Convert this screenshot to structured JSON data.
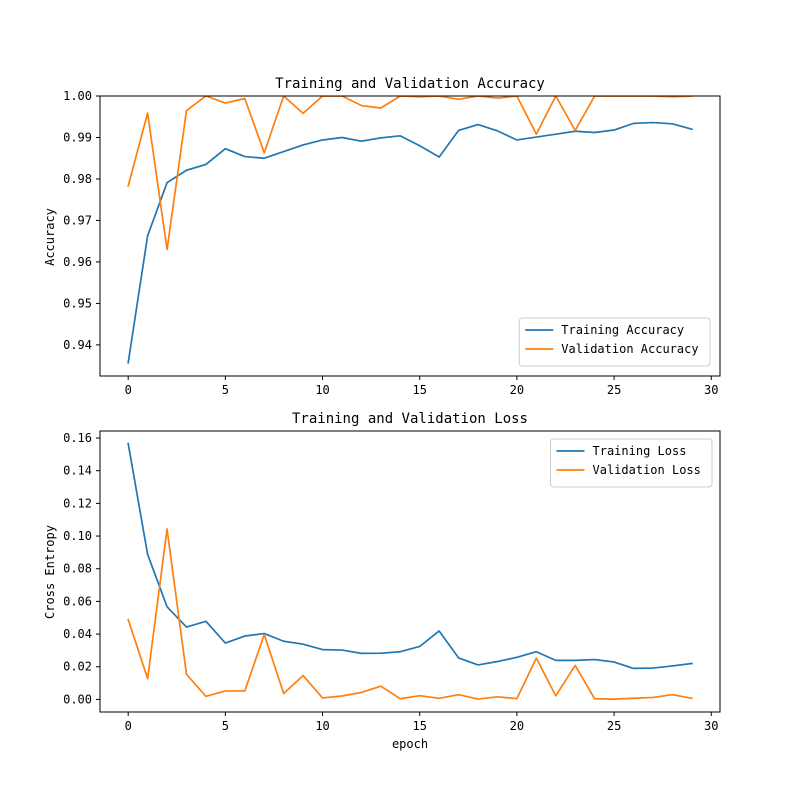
{
  "chart_data": [
    {
      "type": "line",
      "title": "Training and Validation Accuracy",
      "xlabel": "",
      "ylabel": "Accuracy",
      "xlim": [
        -1.45,
        30.45
      ],
      "ylim": [
        0.9325,
        1.0
      ],
      "xticks": [
        0,
        5,
        10,
        15,
        20,
        25,
        30
      ],
      "yticks": [
        0.94,
        0.95,
        0.96,
        0.97,
        0.98,
        0.99,
        1.0
      ],
      "ytick_labels": [
        "0.94",
        "0.95",
        "0.96",
        "0.97",
        "0.98",
        "0.99",
        "1.00"
      ],
      "grid": false,
      "legend_position": "lower-right",
      "x": [
        0,
        1,
        2,
        3,
        4,
        5,
        6,
        7,
        8,
        9,
        10,
        11,
        12,
        13,
        14,
        15,
        16,
        17,
        18,
        19,
        20,
        21,
        22,
        23,
        24,
        25,
        26,
        27,
        28,
        29
      ],
      "series": [
        {
          "name": "Training Accuracy",
          "color": "#1f77b4",
          "values": [
            0.9357,
            0.9663,
            0.9791,
            0.9821,
            0.9835,
            0.9873,
            0.9854,
            0.985,
            0.9866,
            0.9882,
            0.9894,
            0.99,
            0.9891,
            0.9899,
            0.9904,
            0.988,
            0.9853,
            0.9917,
            0.9931,
            0.9916,
            0.9894,
            0.9901,
            0.9908,
            0.9915,
            0.9912,
            0.9918,
            0.9934,
            0.9936,
            0.9933,
            0.992
          ]
        },
        {
          "name": "Validation Accuracy",
          "color": "#ff7f0e",
          "values": [
            0.9783,
            0.9959,
            0.963,
            0.9965,
            1.0,
            0.9983,
            0.9994,
            0.9863,
            1.0,
            0.9958,
            1.0,
            1.0,
            0.9977,
            0.9971,
            1.0,
            0.9998,
            1.0,
            0.9992,
            1.0,
            0.9995,
            1.0,
            0.9908,
            1.0,
            0.9917,
            1.0,
            1.0,
            1.0,
            1.0,
            0.9998,
            1.0
          ]
        }
      ]
    },
    {
      "type": "line",
      "title": "Training and Validation Loss",
      "xlabel": "epoch",
      "ylabel": "Cross Entropy",
      "xlim": [
        -1.45,
        30.45
      ],
      "ylim": [
        -0.0077,
        0.1643
      ],
      "xticks": [
        0,
        5,
        10,
        15,
        20,
        25,
        30
      ],
      "yticks": [
        0.0,
        0.02,
        0.04,
        0.06,
        0.08,
        0.1,
        0.12,
        0.14,
        0.16
      ],
      "ytick_labels": [
        "0.00",
        "0.02",
        "0.04",
        "0.06",
        "0.08",
        "0.10",
        "0.12",
        "0.14",
        "0.16"
      ],
      "grid": false,
      "legend_position": "upper-right",
      "x": [
        0,
        1,
        2,
        3,
        4,
        5,
        6,
        7,
        8,
        9,
        10,
        11,
        12,
        13,
        14,
        15,
        16,
        17,
        18,
        19,
        20,
        21,
        22,
        23,
        24,
        25,
        26,
        27,
        28,
        29
      ],
      "series": [
        {
          "name": "Training Loss",
          "color": "#1f77b4",
          "values": [
            0.1566,
            0.0888,
            0.0567,
            0.0443,
            0.0478,
            0.0345,
            0.0388,
            0.0403,
            0.0356,
            0.0338,
            0.0305,
            0.0302,
            0.0282,
            0.0283,
            0.0292,
            0.0324,
            0.0419,
            0.0254,
            0.0211,
            0.0232,
            0.0258,
            0.0292,
            0.0239,
            0.0239,
            0.0244,
            0.0229,
            0.019,
            0.0192,
            0.0205,
            0.022
          ]
        },
        {
          "name": "Validation Loss",
          "color": "#ff7f0e",
          "values": [
            0.0489,
            0.0127,
            0.1043,
            0.0154,
            0.0019,
            0.0052,
            0.0052,
            0.0397,
            0.0036,
            0.0146,
            0.0009,
            0.0021,
            0.0043,
            0.0081,
            0.0004,
            0.0023,
            0.0007,
            0.0029,
            0.0002,
            0.0016,
            0.0005,
            0.0253,
            0.0022,
            0.0208,
            0.0004,
            0.0002,
            0.0007,
            0.0012,
            0.0029,
            0.0007
          ]
        }
      ]
    }
  ]
}
